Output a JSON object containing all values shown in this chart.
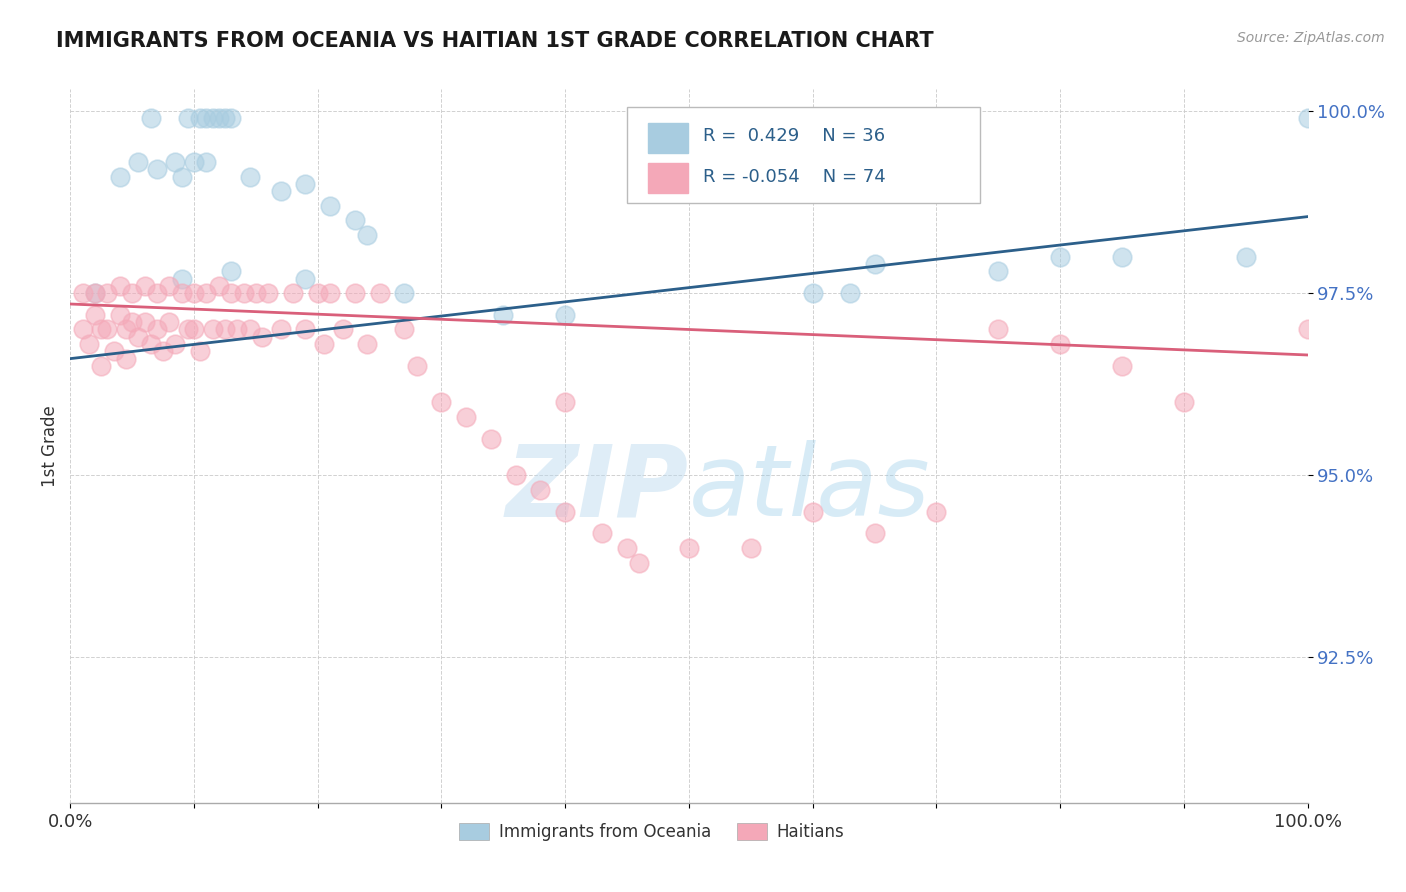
{
  "title": "IMMIGRANTS FROM OCEANIA VS HAITIAN 1ST GRADE CORRELATION CHART",
  "source": "Source: ZipAtlas.com",
  "ylabel": "1st Grade",
  "blue_R": 0.429,
  "blue_N": 36,
  "pink_R": -0.054,
  "pink_N": 74,
  "legend_label_blue": "Immigrants from Oceania",
  "legend_label_pink": "Haitians",
  "blue_color": "#a8cce0",
  "pink_color": "#f4a8b8",
  "blue_line_color": "#2c5f8a",
  "pink_line_color": "#d95f7a",
  "background_color": "#ffffff",
  "watermark_color": "#d0e8f5",
  "ytick_color": "#4472c4",
  "xlim": [
    0.0,
    1.0
  ],
  "ylim": [
    0.905,
    1.003
  ],
  "yticks": [
    0.925,
    0.95,
    0.975,
    1.0
  ],
  "ytick_labels": [
    "92.5%",
    "95.0%",
    "97.5%",
    "100.0%"
  ],
  "blue_line_x0": 0.0,
  "blue_line_y0": 0.966,
  "blue_line_x1": 1.0,
  "blue_line_y1": 0.9855,
  "pink_line_x0": 0.0,
  "pink_line_y0": 0.9735,
  "pink_line_x1": 1.0,
  "pink_line_y1": 0.9665,
  "blue_x": [
    0.02,
    0.065,
    0.095,
    0.105,
    0.11,
    0.115,
    0.12,
    0.125,
    0.13,
    0.04,
    0.055,
    0.07,
    0.085,
    0.09,
    0.1,
    0.11,
    0.145,
    0.17,
    0.19,
    0.21,
    0.23,
    0.24,
    0.09,
    0.13,
    0.19,
    0.27,
    0.35,
    0.4,
    0.6,
    0.63,
    0.65,
    0.75,
    0.8,
    0.85,
    0.95,
    1.0
  ],
  "blue_y": [
    0.975,
    0.999,
    0.999,
    0.999,
    0.999,
    0.999,
    0.999,
    0.999,
    0.999,
    0.991,
    0.993,
    0.992,
    0.993,
    0.991,
    0.993,
    0.993,
    0.991,
    0.989,
    0.99,
    0.987,
    0.985,
    0.983,
    0.977,
    0.978,
    0.977,
    0.975,
    0.972,
    0.972,
    0.975,
    0.975,
    0.979,
    0.978,
    0.98,
    0.98,
    0.98,
    0.999
  ],
  "pink_x": [
    0.01,
    0.01,
    0.015,
    0.02,
    0.02,
    0.025,
    0.025,
    0.03,
    0.03,
    0.035,
    0.04,
    0.04,
    0.045,
    0.045,
    0.05,
    0.05,
    0.055,
    0.06,
    0.06,
    0.065,
    0.07,
    0.07,
    0.075,
    0.08,
    0.08,
    0.085,
    0.09,
    0.095,
    0.1,
    0.1,
    0.105,
    0.11,
    0.115,
    0.12,
    0.125,
    0.13,
    0.135,
    0.14,
    0.145,
    0.15,
    0.155,
    0.16,
    0.17,
    0.18,
    0.19,
    0.2,
    0.205,
    0.21,
    0.22,
    0.23,
    0.24,
    0.25,
    0.27,
    0.28,
    0.3,
    0.32,
    0.34,
    0.36,
    0.38,
    0.4,
    0.4,
    0.43,
    0.45,
    0.46,
    0.5,
    0.55,
    0.6,
    0.65,
    0.7,
    0.75,
    0.8,
    0.85,
    0.9,
    1.0
  ],
  "pink_y": [
    0.975,
    0.97,
    0.968,
    0.975,
    0.972,
    0.97,
    0.965,
    0.975,
    0.97,
    0.967,
    0.976,
    0.972,
    0.97,
    0.966,
    0.975,
    0.971,
    0.969,
    0.976,
    0.971,
    0.968,
    0.975,
    0.97,
    0.967,
    0.976,
    0.971,
    0.968,
    0.975,
    0.97,
    0.975,
    0.97,
    0.967,
    0.975,
    0.97,
    0.976,
    0.97,
    0.975,
    0.97,
    0.975,
    0.97,
    0.975,
    0.969,
    0.975,
    0.97,
    0.975,
    0.97,
    0.975,
    0.968,
    0.975,
    0.97,
    0.975,
    0.968,
    0.975,
    0.97,
    0.965,
    0.96,
    0.958,
    0.955,
    0.95,
    0.948,
    0.96,
    0.945,
    0.942,
    0.94,
    0.938,
    0.94,
    0.94,
    0.945,
    0.942,
    0.945,
    0.97,
    0.968,
    0.965,
    0.96,
    0.97
  ]
}
